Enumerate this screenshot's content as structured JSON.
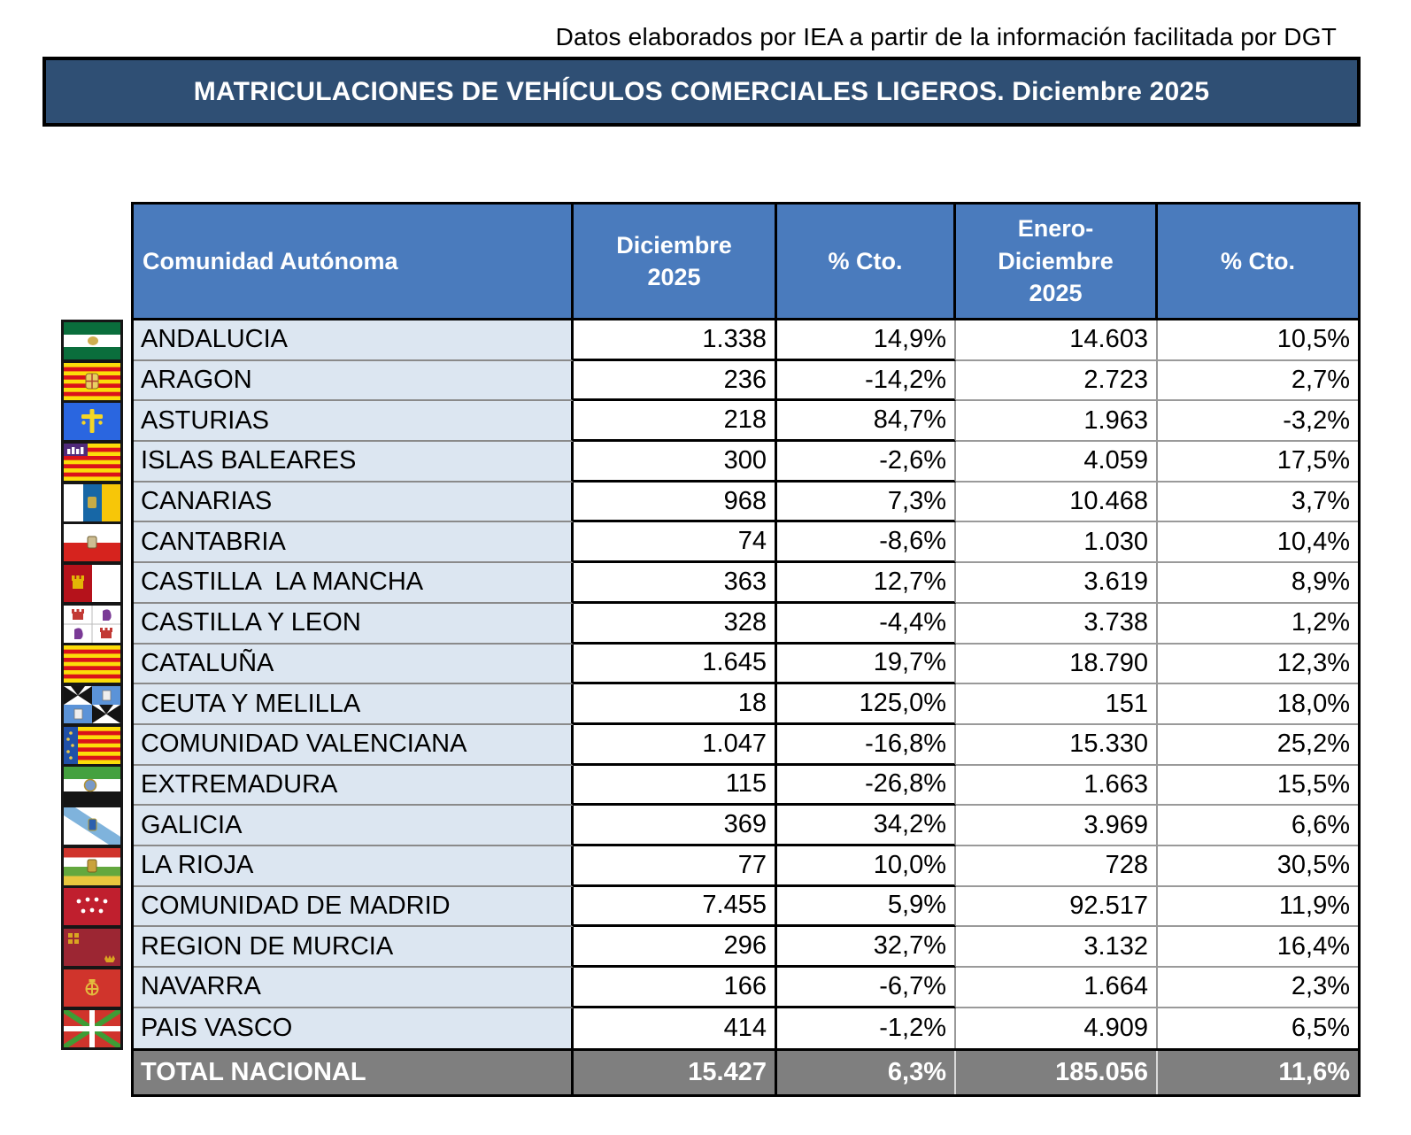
{
  "source_note": "Datos elaborados por IEA a partir de la información facilitada por DGT",
  "banner": {
    "title": "MATRICULACIONES DE VEHÍCULOS COMERCIALES LIGEROS. Diciembre 2025"
  },
  "colors": {
    "banner_bg": "#2F4F74",
    "header_bg": "#4A7BBD",
    "label_column_bg": "#DCE6F1",
    "total_row_bg": "#7F7F7F",
    "black_border": "#000000",
    "gray_border": "#999999"
  },
  "table": {
    "columns": [
      "Comunidad Autónoma",
      "Diciembre 2025",
      "% Cto.",
      "Enero-Diciembre 2025",
      "% Cto."
    ],
    "rows": [
      {
        "flag": "andalucia",
        "name": "ANDALUCIA",
        "dec": "1.338",
        "cto_dec": "14,9%",
        "ytd": "14.603",
        "cto_ytd": "10,5%"
      },
      {
        "flag": "aragon",
        "name": "ARAGON",
        "dec": "236",
        "cto_dec": "-14,2%",
        "ytd": "2.723",
        "cto_ytd": "2,7%"
      },
      {
        "flag": "asturias",
        "name": "ASTURIAS",
        "dec": "218",
        "cto_dec": "84,7%",
        "ytd": "1.963",
        "cto_ytd": "-3,2%"
      },
      {
        "flag": "islas-baleares",
        "name": "ISLAS BALEARES",
        "dec": "300",
        "cto_dec": "-2,6%",
        "ytd": "4.059",
        "cto_ytd": "17,5%"
      },
      {
        "flag": "canarias",
        "name": "CANARIAS",
        "dec": "968",
        "cto_dec": "7,3%",
        "ytd": "10.468",
        "cto_ytd": "3,7%"
      },
      {
        "flag": "cantabria",
        "name": "CANTABRIA",
        "dec": "74",
        "cto_dec": "-8,6%",
        "ytd": "1.030",
        "cto_ytd": "10,4%"
      },
      {
        "flag": "castilla-la-mancha",
        "name": "CASTILLA  LA MANCHA",
        "dec": "363",
        "cto_dec": "12,7%",
        "ytd": "3.619",
        "cto_ytd": "8,9%"
      },
      {
        "flag": "castilla-y-leon",
        "name": "CASTILLA Y LEON",
        "dec": "328",
        "cto_dec": "-4,4%",
        "ytd": "3.738",
        "cto_ytd": "1,2%"
      },
      {
        "flag": "cataluna",
        "name": "CATALUÑA",
        "dec": "1.645",
        "cto_dec": "19,7%",
        "ytd": "18.790",
        "cto_ytd": "12,3%"
      },
      {
        "flag": "ceuta-y-melilla",
        "name": "CEUTA Y MELILLA",
        "dec": "18",
        "cto_dec": "125,0%",
        "ytd": "151",
        "cto_ytd": "18,0%"
      },
      {
        "flag": "comunidad-valenciana",
        "name": "COMUNIDAD VALENCIANA",
        "dec": "1.047",
        "cto_dec": "-16,8%",
        "ytd": "15.330",
        "cto_ytd": "25,2%"
      },
      {
        "flag": "extremadura",
        "name": "EXTREMADURA",
        "dec": "115",
        "cto_dec": "-26,8%",
        "ytd": "1.663",
        "cto_ytd": "15,5%"
      },
      {
        "flag": "galicia",
        "name": "GALICIA",
        "dec": "369",
        "cto_dec": "34,2%",
        "ytd": "3.969",
        "cto_ytd": "6,6%"
      },
      {
        "flag": "la-rioja",
        "name": "LA RIOJA",
        "dec": "77",
        "cto_dec": "10,0%",
        "ytd": "728",
        "cto_ytd": "30,5%"
      },
      {
        "flag": "comunidad-de-madrid",
        "name": "COMUNIDAD DE MADRID",
        "dec": "7.455",
        "cto_dec": "5,9%",
        "ytd": "92.517",
        "cto_ytd": "11,9%"
      },
      {
        "flag": "region-de-murcia",
        "name": "REGION DE MURCIA",
        "dec": "296",
        "cto_dec": "32,7%",
        "ytd": "3.132",
        "cto_ytd": "16,4%"
      },
      {
        "flag": "navarra",
        "name": "NAVARRA",
        "dec": "166",
        "cto_dec": "-6,7%",
        "ytd": "1.664",
        "cto_ytd": "2,3%"
      },
      {
        "flag": "pais-vasco",
        "name": "PAIS VASCO",
        "dec": "414",
        "cto_dec": "-1,2%",
        "ytd": "4.909",
        "cto_ytd": "6,5%"
      }
    ],
    "total": {
      "name": "TOTAL NACIONAL",
      "dec": "15.427",
      "cto_dec": "6,3%",
      "ytd": "185.056",
      "cto_ytd": "11,6%"
    }
  }
}
